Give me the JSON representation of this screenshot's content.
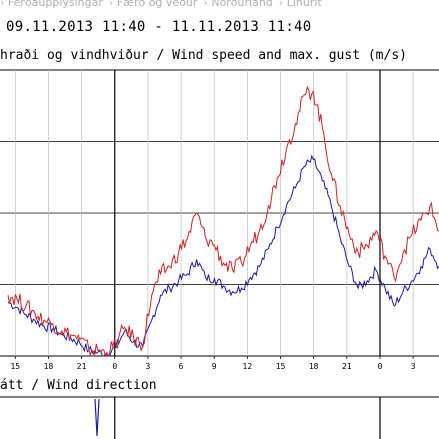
{
  "breadcrumb": [
    "Ferðaupplýsingar",
    "Færð og veður",
    "Norðurland",
    "Línurit"
  ],
  "date_range": "09.11.2013 11:40 - 11.11.2013 11:40",
  "speed_chart_title": "hraði og vindhviður / Wind speed and max. gust (m/s)",
  "direction_chart_title": "átt / Wind direction",
  "colors": {
    "wind_speed": "#1a1aa6",
    "max_gust": "#cc2222",
    "grid": "#000000"
  },
  "chart_data": [
    {
      "type": "line",
      "title": "hraði og vindhviður / Wind speed and max. gust (m/s)",
      "xlabel": "",
      "ylabel": "",
      "x_tick_labels": [
        "15",
        "18",
        "21",
        "0",
        "3",
        "6",
        "9",
        "12",
        "15",
        "18",
        "21",
        "0",
        "3"
      ],
      "x_unit": "hours since 09.11.2013 11:40",
      "x_range": [
        0,
        48
      ],
      "ylim": [
        0,
        40
      ],
      "grid": true,
      "series": [
        {
          "name": "",
          "color": "#1a1aa6",
          "x": [
            0,
            1,
            2,
            3,
            4,
            5,
            6,
            7,
            8,
            9,
            10,
            11,
            12,
            13,
            14,
            15,
            16,
            17,
            18,
            19,
            20,
            21,
            22,
            23,
            24,
            25,
            26,
            27,
            28,
            29,
            30,
            31,
            32,
            33,
            34,
            35,
            36,
            37,
            38,
            39,
            40,
            41,
            42,
            43,
            44,
            45,
            46,
            47,
            48
          ],
          "values": [
            7.5,
            6.8,
            5.8,
            5.0,
            4.2,
            3.8,
            3.0,
            2.5,
            1.8,
            0.8,
            0.5,
            0.3,
            1.2,
            3.5,
            2.0,
            1.2,
            5.0,
            8.5,
            9.5,
            10.5,
            11.5,
            13.5,
            11.0,
            10.8,
            9.8,
            9.0,
            9.5,
            11.0,
            12.5,
            15.0,
            18.0,
            21.0,
            23.5,
            26.5,
            27.5,
            24.5,
            21.0,
            16.5,
            12.5,
            9.5,
            10.5,
            12.0,
            9.5,
            7.0,
            9.0,
            10.5,
            12.5,
            15.0,
            12.5
          ]
        },
        {
          "name": "",
          "color": "#cc2222",
          "x": [
            0,
            1,
            2,
            3,
            4,
            5,
            6,
            7,
            8,
            9,
            10,
            11,
            12,
            13,
            14,
            15,
            16,
            17,
            18,
            19,
            20,
            21,
            22,
            23,
            24,
            25,
            26,
            27,
            28,
            29,
            30,
            31,
            32,
            33,
            34,
            35,
            36,
            37,
            38,
            39,
            40,
            41,
            42,
            43,
            44,
            45,
            46,
            47,
            48
          ],
          "values": [
            8.5,
            8.0,
            7.0,
            6.0,
            5.0,
            4.5,
            3.5,
            3.0,
            2.3,
            1.0,
            0.8,
            0.5,
            1.6,
            4.0,
            2.5,
            1.5,
            8.5,
            11.5,
            12.5,
            14.5,
            16.5,
            20.0,
            16.5,
            15.5,
            13.0,
            12.0,
            13.0,
            15.5,
            17.5,
            21.0,
            25.0,
            29.0,
            32.5,
            36.5,
            37.0,
            32.0,
            25.5,
            21.0,
            17.0,
            14.5,
            15.5,
            17.5,
            14.0,
            11.0,
            14.5,
            17.0,
            19.0,
            21.0,
            17.5
          ]
        }
      ]
    },
    {
      "type": "line",
      "title": "átt / Wind direction",
      "xlabel": "",
      "ylabel": "",
      "grid": true
    }
  ]
}
